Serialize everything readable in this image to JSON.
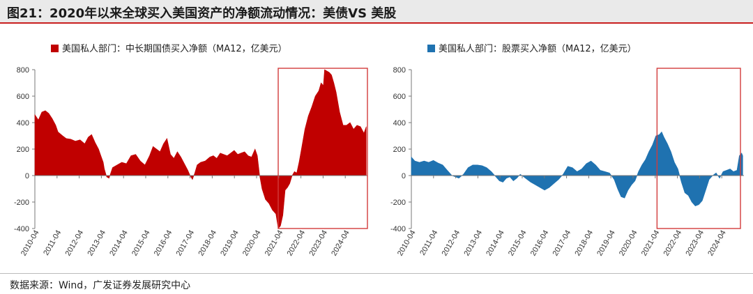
{
  "title": "图21：2020年以来全球买入美国资产的净额流动情况：美债VS 美股",
  "footer": "数据来源：Wind，广发证券发展研究中心",
  "chart_data": [
    {
      "type": "area",
      "legend": "美国私人部门：中长期国债买入净额（MA12，亿美元）",
      "color": "#c00000",
      "ylim": [
        -400,
        800
      ],
      "yticks": [
        -400,
        -200,
        0,
        200,
        400,
        600,
        800
      ],
      "xlim": [
        2010.25,
        2024.6
      ],
      "xticks": [
        "2010-04",
        "2011-04",
        "2012-04",
        "2013-04",
        "2014-04",
        "2015-04",
        "2016-04",
        "2017-04",
        "2018-04",
        "2019-04",
        "2020-04",
        "2021-04",
        "2022-04",
        "2023-04",
        "2024-04"
      ],
      "highlight": [
        2020.75,
        2024.6
      ],
      "series": [
        {
          "x": [
            2010.25,
            2010.4,
            2010.55,
            2010.7,
            2010.85,
            2011.0,
            2011.15,
            2011.25,
            2011.45,
            2011.6,
            2011.8,
            2012.0,
            2012.2,
            2012.4,
            2012.55,
            2012.7,
            2012.85,
            2013.0,
            2013.1,
            2013.2,
            2013.25,
            2013.35,
            2013.45,
            2013.6,
            2013.8,
            2014.0,
            2014.2,
            2014.4,
            2014.6,
            2014.8,
            2015.0,
            2015.2,
            2015.35,
            2015.5,
            2015.65,
            2015.8,
            2015.95,
            2016.1,
            2016.25,
            2016.4,
            2016.55,
            2016.7,
            2016.85,
            2016.95,
            2017.05,
            2017.15,
            2017.25,
            2017.4,
            2017.6,
            2017.8,
            2017.95,
            2018.1,
            2018.25,
            2018.4,
            2018.55,
            2018.7,
            2018.85,
            2019.0,
            2019.15,
            2019.3,
            2019.45,
            2019.6,
            2019.75,
            2019.85,
            2019.95,
            2020.05,
            2020.2,
            2020.35,
            2020.5,
            2020.65,
            2020.75,
            2020.85,
            2020.95,
            2021.05,
            2021.15,
            2021.25,
            2021.35,
            2021.45,
            2021.55,
            2021.65,
            2021.75,
            2021.9,
            2022.05,
            2022.2,
            2022.35,
            2022.5,
            2022.6,
            2022.7,
            2022.75,
            2022.85,
            2022.95,
            2023.05,
            2023.15,
            2023.25,
            2023.4,
            2023.55,
            2023.7,
            2023.85,
            2024.0,
            2024.15,
            2024.3,
            2024.45,
            2024.55
          ],
          "y": [
            460,
            420,
            480,
            490,
            470,
            430,
            380,
            330,
            300,
            280,
            275,
            260,
            270,
            240,
            290,
            310,
            250,
            200,
            150,
            100,
            50,
            -10,
            -20,
            60,
            80,
            100,
            90,
            150,
            160,
            110,
            80,
            150,
            220,
            200,
            180,
            240,
            280,
            160,
            130,
            180,
            140,
            90,
            40,
            0,
            -30,
            20,
            80,
            100,
            110,
            140,
            150,
            130,
            170,
            160,
            150,
            170,
            190,
            160,
            170,
            180,
            150,
            140,
            200,
            150,
            0,
            -100,
            -180,
            -210,
            -260,
            -290,
            -400,
            -380,
            -300,
            -110,
            -90,
            -60,
            0,
            30,
            20,
            100,
            200,
            350,
            450,
            520,
            600,
            640,
            700,
            680,
            800,
            790,
            780,
            760,
            700,
            630,
            480,
            380,
            380,
            400,
            350,
            380,
            370,
            320,
            370
          ]
        }
      ]
    },
    {
      "type": "area",
      "legend": "美国私人部门：股票买入净额（MA12，亿美元）",
      "color": "#1f72b0",
      "ylim": [
        -400,
        800
      ],
      "yticks": [
        -400,
        -200,
        0,
        200,
        400,
        600,
        800
      ],
      "xlim": [
        2010.25,
        2024.6
      ],
      "xticks": [
        "2010-04",
        "2011-04",
        "2012-04",
        "2013-04",
        "2014-04",
        "2015-04",
        "2016-04",
        "2017-04",
        "2018-04",
        "2019-04",
        "2020-04",
        "2021-04",
        "2022-04",
        "2023-04",
        "2024-04"
      ],
      "highlight": [
        2020.85,
        2024.45
      ],
      "series": [
        {
          "x": [
            2010.25,
            2010.4,
            2010.6,
            2010.8,
            2011.0,
            2011.2,
            2011.4,
            2011.6,
            2011.8,
            2012.0,
            2012.15,
            2012.3,
            2012.5,
            2012.7,
            2012.9,
            2013.1,
            2013.3,
            2013.5,
            2013.7,
            2013.9,
            2014.05,
            2014.2,
            2014.35,
            2014.5,
            2014.65,
            2014.8,
            2014.95,
            2015.1,
            2015.25,
            2015.4,
            2015.6,
            2015.8,
            2016.0,
            2016.2,
            2016.4,
            2016.6,
            2016.8,
            2017.0,
            2017.2,
            2017.4,
            2017.6,
            2017.8,
            2018.0,
            2018.2,
            2018.4,
            2018.6,
            2018.8,
            2019.0,
            2019.15,
            2019.3,
            2019.45,
            2019.6,
            2019.75,
            2019.9,
            2020.05,
            2020.2,
            2020.35,
            2020.5,
            2020.65,
            2020.8,
            2020.95,
            2021.05,
            2021.15,
            2021.3,
            2021.45,
            2021.6,
            2021.75,
            2021.9,
            2022.05,
            2022.2,
            2022.35,
            2022.5,
            2022.65,
            2022.8,
            2022.95,
            2023.1,
            2023.25,
            2023.4,
            2023.55,
            2023.7,
            2023.85,
            2024.0,
            2024.15,
            2024.3,
            2024.4,
            2024.5,
            2024.55
          ],
          "y": [
            140,
            110,
            100,
            110,
            100,
            115,
            95,
            80,
            40,
            0,
            -10,
            -20,
            10,
            60,
            80,
            80,
            75,
            60,
            30,
            -10,
            -40,
            -50,
            -20,
            -10,
            -40,
            -20,
            10,
            -10,
            -30,
            -50,
            -70,
            -90,
            -110,
            -90,
            -60,
            -30,
            10,
            70,
            60,
            30,
            50,
            90,
            110,
            80,
            40,
            30,
            20,
            -30,
            -100,
            -160,
            -170,
            -110,
            -70,
            -40,
            30,
            80,
            120,
            180,
            230,
            300,
            310,
            330,
            290,
            240,
            180,
            100,
            50,
            -50,
            -130,
            -150,
            -200,
            -230,
            -220,
            -190,
            -110,
            -30,
            0,
            20,
            -20,
            30,
            40,
            50,
            30,
            40,
            150,
            170,
            150
          ]
        }
      ]
    }
  ]
}
